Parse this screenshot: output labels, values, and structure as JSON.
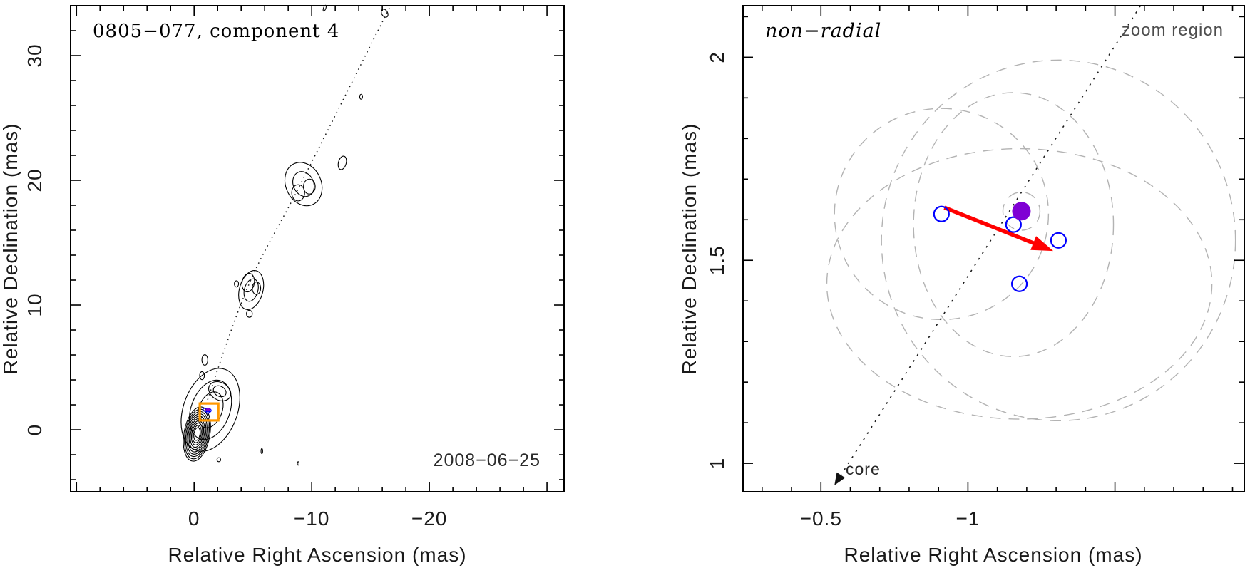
{
  "colors": {
    "frame": "#000000",
    "contour": "#000000",
    "trajectory": "#1a1a1a",
    "open_marker": "#0000ff",
    "filled_marker": "#7f00d4",
    "arrow": "#ff0000",
    "dashed_circle": "#b3b3b3",
    "zoom_box": "#ff9800",
    "gray_text": "#4d4d4d"
  },
  "chart_data": [
    {
      "id": "map",
      "type": "scatter",
      "title": "0805−077, component 4",
      "date_label": "2008−06−25",
      "xlabel": "Relative Right Ascension (mas)",
      "ylabel": "Relative Declination (mas)",
      "xlim": [
        10.5,
        -31.45
      ],
      "ylim": [
        -4.97,
        34.0
      ],
      "x_major_ticks": [
        {
          "value": 10,
          "label": ""
        },
        {
          "value": 0,
          "label": "0"
        },
        {
          "value": -10,
          "label": "−10"
        },
        {
          "value": -20,
          "label": "−20"
        },
        {
          "value": -30,
          "label": ""
        }
      ],
      "y_major_ticks": [
        {
          "value": 0,
          "label": "0"
        },
        {
          "value": 10,
          "label": "10"
        },
        {
          "value": 20,
          "label": "20"
        },
        {
          "value": 30,
          "label": "30"
        }
      ],
      "x_minor_step": 2,
      "y_minor_step": 2,
      "grid": false,
      "trajectory_points": [
        [
          -0.36,
          0.2
        ],
        [
          -4.5,
          11.3
        ],
        [
          -9.0,
          19.6
        ],
        [
          -16.7,
          34.0
        ]
      ],
      "zoom_box": {
        "ra": [
          -0.48,
          -2.06
        ],
        "dec": [
          0.75,
          2.11
        ]
      },
      "zoom_box_markers": {
        "open_points": [
          [
            -0.91,
            1.614
          ],
          [
            -1.155,
            1.588
          ],
          [
            -1.308,
            1.549
          ],
          [
            -1.175,
            1.442
          ]
        ],
        "filled_point": [
          -1.182,
          1.621
        ],
        "arrow": {
          "from": [
            -0.92,
            1.63
          ],
          "to": [
            -1.29,
            1.523
          ]
        }
      },
      "contour_features": [
        {
          "ra": -0.24,
          "dec": -0.34,
          "rx": 1.1,
          "ry": 2.2,
          "rot": 10,
          "rings": 10
        },
        {
          "ra": -1.39,
          "dec": 1.6,
          "rx": 2.3,
          "ry": 3.45,
          "rot": 20,
          "rings": 3
        },
        {
          "ra": -2.18,
          "dec": 3.09,
          "rx": 1.0,
          "ry": 0.7,
          "rot": 30,
          "rings": 2
        },
        {
          "ra": -0.91,
          "dec": 5.6,
          "rx": 0.25,
          "ry": 0.42,
          "rot": 0,
          "rings": 1
        },
        {
          "ra": -0.67,
          "dec": 4.34,
          "rx": 0.2,
          "ry": 0.32,
          "rot": 0,
          "rings": 1
        },
        {
          "ra": -4.85,
          "dec": 11.2,
          "rx": 1.0,
          "ry": 1.6,
          "rot": 15,
          "rings": 2
        },
        {
          "ra": -4.6,
          "dec": 11.8,
          "rx": 0.52,
          "ry": 0.75,
          "rot": 10,
          "rings": 1
        },
        {
          "ra": -5.3,
          "dec": 11.35,
          "rx": 0.36,
          "ry": 0.5,
          "rot": 0,
          "rings": 1
        },
        {
          "ra": -4.7,
          "dec": 9.3,
          "rx": 0.25,
          "ry": 0.28,
          "rot": 0,
          "rings": 1
        },
        {
          "ra": -3.6,
          "dec": 11.7,
          "rx": 0.18,
          "ry": 0.25,
          "rot": 0,
          "rings": 1
        },
        {
          "ra": -9.3,
          "dec": 19.7,
          "rx": 1.5,
          "ry": 1.8,
          "rot": -25,
          "rings": 2
        },
        {
          "ra": -8.85,
          "dec": 19.0,
          "rx": 0.55,
          "ry": 0.65,
          "rot": 0,
          "rings": 1
        },
        {
          "ra": -9.8,
          "dec": 19.5,
          "rx": 0.5,
          "ry": 0.6,
          "rot": 0,
          "rings": 1
        },
        {
          "ra": -12.6,
          "dec": 21.4,
          "rx": 0.33,
          "ry": 0.55,
          "rot": 15,
          "rings": 1
        },
        {
          "ra": -2.1,
          "dec": -2.4,
          "rx": 0.16,
          "ry": 0.16,
          "rot": 0,
          "rings": 1
        },
        {
          "ra": -5.76,
          "dec": -1.71,
          "rx": 0.07,
          "ry": 0.2,
          "rot": 0,
          "rings": 1
        },
        {
          "ra": -8.85,
          "dec": -2.7,
          "rx": 0.07,
          "ry": 0.14,
          "rot": 0,
          "rings": 1
        },
        {
          "ra": -14.2,
          "dec": 26.7,
          "rx": 0.12,
          "ry": 0.2,
          "rot": 0,
          "rings": 1
        },
        {
          "ra": -16.2,
          "dec": 33.4,
          "rx": 0.25,
          "ry": 0.35,
          "rot": -30,
          "rings": 1
        },
        {
          "ra": -11.1,
          "dec": 33.8,
          "rx": 0.1,
          "ry": 0.25,
          "rot": 20,
          "rings": 1
        }
      ]
    },
    {
      "id": "zoom",
      "type": "scatter",
      "corner_label": "non−radial",
      "region_label": "zoom region",
      "core_label": "core",
      "xlabel": "Relative Right Ascension (mas)",
      "ylabel": "Relative Declination (mas)",
      "xlim": [
        -0.235,
        -1.94
      ],
      "ylim": [
        0.93,
        2.127
      ],
      "x_major_ticks": [
        {
          "value": -0.5,
          "label": "−0.5"
        },
        {
          "value": -1,
          "label": "−1"
        },
        {
          "value": -1.5,
          "label": ""
        }
      ],
      "y_major_ticks": [
        {
          "value": 1,
          "label": "1"
        },
        {
          "value": 1.5,
          "label": "1.5"
        },
        {
          "value": 2,
          "label": "2"
        }
      ],
      "x_minor_step": 0.1,
      "y_minor_step": 0.1,
      "grid": false,
      "points_open": [
        [
          -0.91,
          1.614
        ],
        [
          -1.155,
          1.588
        ],
        [
          -1.308,
          1.549
        ],
        [
          -1.175,
          1.442
        ]
      ],
      "point_filled": [
        -1.182,
        1.621
      ],
      "velocity_arrow": {
        "from": [
          -0.92,
          1.63
        ],
        "to": [
          -1.29,
          1.523
        ]
      },
      "trajectory": {
        "from": [
          -1.587,
          2.127
        ],
        "to": [
          -0.546,
          0.946
        ]
      },
      "dashed_ellipses": [
        {
          "ra": -0.91,
          "dec": 1.614,
          "rx": 0.364,
          "ry": 0.26
        },
        {
          "ra": -1.155,
          "dec": 1.588,
          "rx": 0.34,
          "ry": 0.325
        },
        {
          "ra": -1.182,
          "dec": 1.621,
          "rx": 0.063,
          "ry": 0.047
        },
        {
          "ra": -1.308,
          "dec": 1.549,
          "rx": 0.602,
          "ry": 0.444
        },
        {
          "ra": -1.175,
          "dec": 1.442,
          "rx": 0.655,
          "ry": 0.333
        }
      ]
    }
  ]
}
